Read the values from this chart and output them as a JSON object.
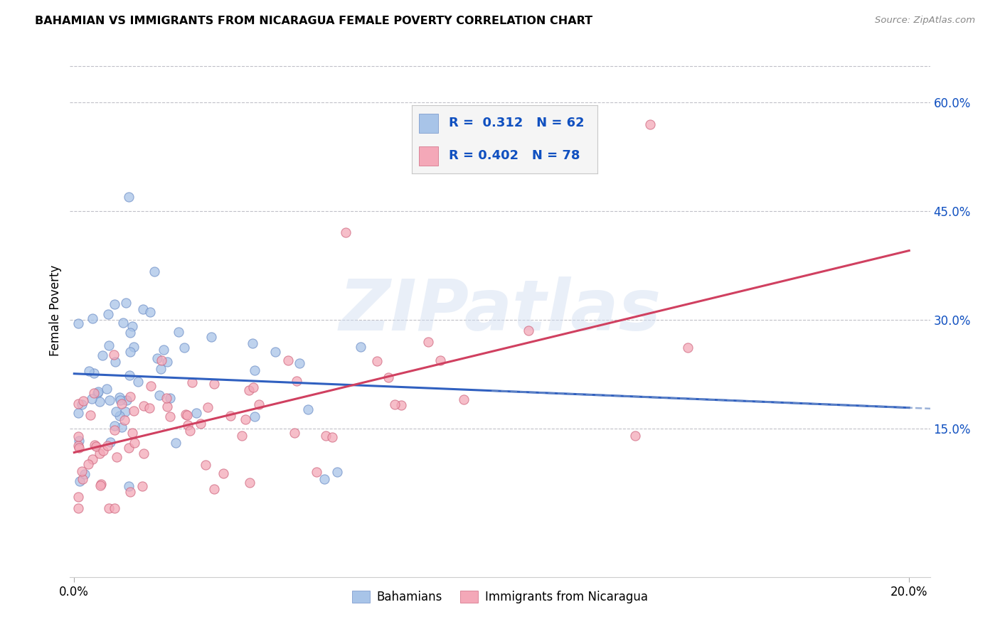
{
  "title": "BAHAMIAN VS IMMIGRANTS FROM NICARAGUA FEMALE POVERTY CORRELATION CHART",
  "source": "Source: ZipAtlas.com",
  "ylabel": "Female Poverty",
  "ytick_labels": [
    "15.0%",
    "30.0%",
    "45.0%",
    "60.0%"
  ],
  "ytick_vals": [
    0.15,
    0.3,
    0.45,
    0.6
  ],
  "xtick_labels": [
    "0.0%",
    "20.0%"
  ],
  "xtick_vals": [
    0.0,
    0.2
  ],
  "xlim": [
    -0.001,
    0.205
  ],
  "ylim": [
    -0.055,
    0.68
  ],
  "bahamian_color": "#a8c4e8",
  "bahamian_edge_color": "#7090c8",
  "nicaragua_color": "#f4a8b8",
  "nicaragua_edge_color": "#d06880",
  "bahamian_line_color": "#3060c0",
  "nicaragua_line_color": "#d04060",
  "dashed_line_color": "#7090c8",
  "legend_text_color": "#1050c0",
  "R_bahamian": 0.312,
  "N_bahamian": 62,
  "R_nicaragua": 0.402,
  "N_nicaragua": 78,
  "watermark": "ZIPatlas",
  "background_color": "#ffffff",
  "grid_color": "#c0c0c8",
  "legend_bg": "#f5f5f5",
  "legend_border": "#c8c8c8",
  "bottom_legend_label1": "Bahamians",
  "bottom_legend_label2": "Immigrants from Nicaragua"
}
